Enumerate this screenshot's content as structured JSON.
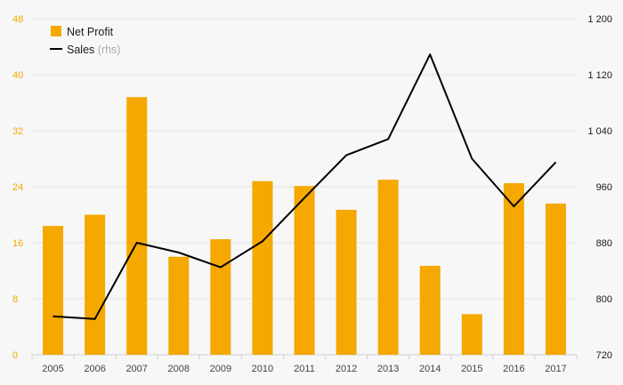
{
  "colors": {
    "background": "#f7f7f7",
    "bar": "#f5a800",
    "line": "#000000",
    "grid": "#e2e2e2",
    "left_axis_text": "#f5a800",
    "right_axis_text": "#1a1a1a"
  },
  "chart_data": {
    "type": "bar",
    "title": "",
    "categories": [
      "2005",
      "2006",
      "2007",
      "2008",
      "2009",
      "2010",
      "2011",
      "2012",
      "2013",
      "2014",
      "2015",
      "2016",
      "2017"
    ],
    "series": [
      {
        "name": "Net Profit",
        "type": "bar",
        "axis": "left",
        "values": [
          18.4,
          20.0,
          36.8,
          14.0,
          16.5,
          24.8,
          24.1,
          20.7,
          25.0,
          12.7,
          5.8,
          24.5,
          21.6
        ]
      },
      {
        "name": "Sales",
        "name_note": "(rhs)",
        "type": "line",
        "axis": "right",
        "values": [
          775,
          771,
          880,
          866,
          845,
          882,
          944,
          1005,
          1028,
          1149,
          1000,
          932,
          995
        ]
      }
    ],
    "left_axis": {
      "range": [
        0,
        48
      ],
      "ticks": [
        {
          "value": 0,
          "label": "0"
        },
        {
          "value": 8,
          "label": "8"
        },
        {
          "value": 16,
          "label": "16"
        },
        {
          "value": 24,
          "label": "24"
        },
        {
          "value": 32,
          "label": "32"
        },
        {
          "value": 40,
          "label": "40"
        },
        {
          "value": 48,
          "label": "48"
        }
      ]
    },
    "right_axis": {
      "range": [
        720,
        1200
      ],
      "ticks": [
        {
          "value": 720,
          "label": "720"
        },
        {
          "value": 800,
          "label": "800"
        },
        {
          "value": 880,
          "label": "880"
        },
        {
          "value": 960,
          "label": "960"
        },
        {
          "value": 1040,
          "label": "1 040"
        },
        {
          "value": 1120,
          "label": "1 120"
        },
        {
          "value": 1200,
          "label": "1 200"
        }
      ]
    },
    "grid": true,
    "legend_position": "top-left"
  }
}
